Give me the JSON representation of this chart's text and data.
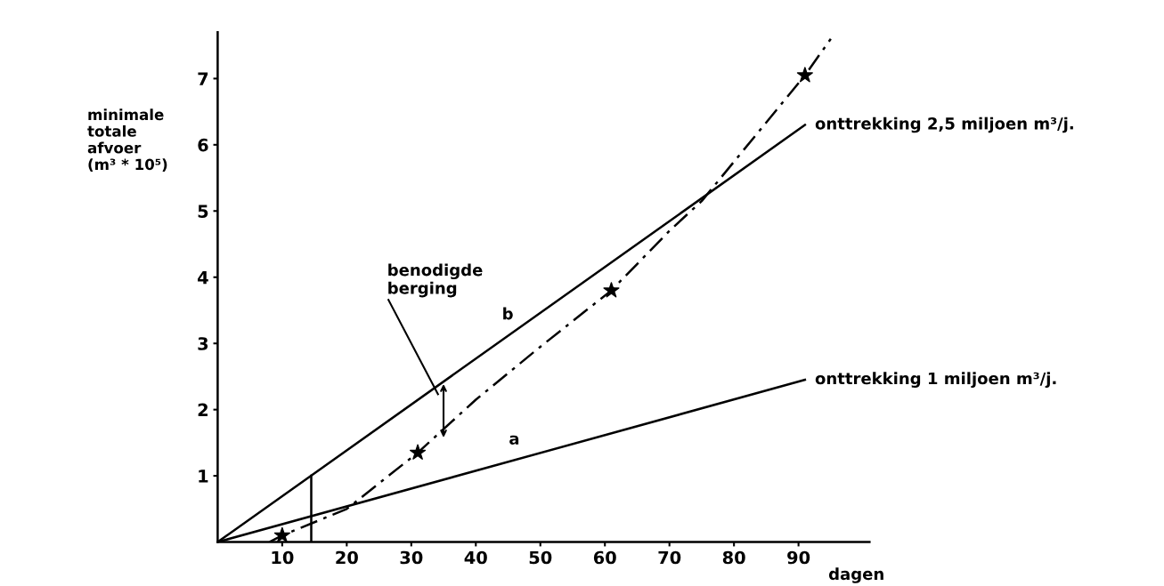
{
  "chart_data": {
    "type": "line",
    "xlabel": "dagen",
    "ylabel": "minimale\ntotale\nafvoer\n(m³ * 10⁵)",
    "xlim": [
      0,
      101
    ],
    "ylim": [
      0,
      7.7
    ],
    "xticks": [
      10,
      20,
      30,
      40,
      50,
      60,
      70,
      80,
      90
    ],
    "yticks": [
      1,
      2,
      3,
      4,
      5,
      6,
      7
    ],
    "grid": false,
    "legend": false,
    "series": [
      {
        "name": "onttrekking 2,5 miljoen m³/j.",
        "color": "#000000",
        "x": [
          0,
          91
        ],
        "values": [
          0,
          6.3
        ]
      },
      {
        "name": "onttrekking 1 miljoen m³/j.",
        "color": "#000000",
        "x": [
          0,
          91
        ],
        "values": [
          0,
          2.45
        ]
      },
      {
        "color": "#000000",
        "line_style": "dashed",
        "x": [
          8,
          10,
          20,
          31,
          40,
          50,
          61,
          70,
          75,
          91,
          95
        ],
        "values": [
          0,
          0.1,
          0.5,
          1.35,
          2.15,
          2.95,
          3.8,
          4.7,
          5.15,
          7.05,
          7.6
        ]
      },
      {
        "type": "scatter",
        "marker": "star",
        "color": "#000000",
        "x": [
          10,
          31,
          61,
          91
        ],
        "values": [
          0.1,
          1.35,
          3.8,
          7.05
        ]
      },
      {
        "color": "#000000",
        "x": [
          14.5,
          14.5
        ],
        "values": [
          0,
          1.0
        ]
      }
    ],
    "annotations": [
      "benodigde\nberging",
      "a",
      "b"
    ]
  }
}
